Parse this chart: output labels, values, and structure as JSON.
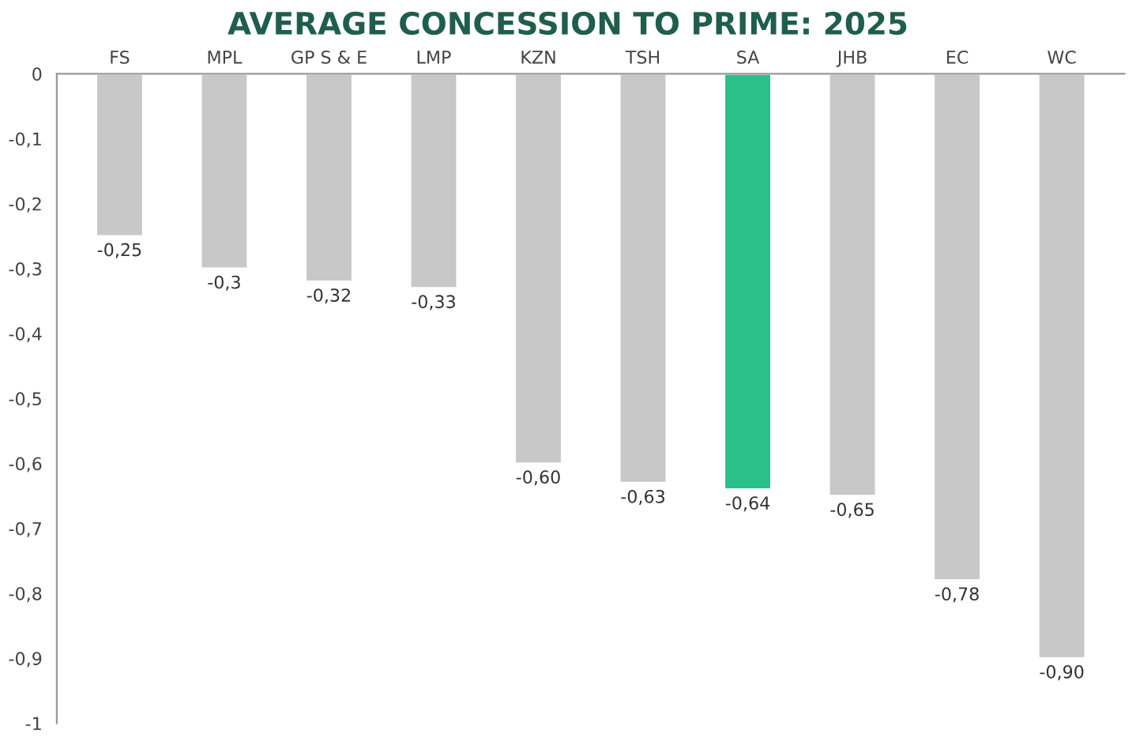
{
  "chart_data": {
    "type": "bar",
    "title": "AVERAGE CONCESSION TO PRIME: 2025",
    "categories": [
      "FS",
      "MPL",
      "GP S & E",
      "LMP",
      "KZN",
      "TSH",
      "SA",
      "JHB",
      "EC",
      "WC"
    ],
    "values": [
      -0.25,
      -0.3,
      -0.32,
      -0.33,
      -0.6,
      -0.63,
      -0.64,
      -0.65,
      -0.78,
      -0.9
    ],
    "colors": [
      "#c8c8c8",
      "#c8c8c8",
      "#c8c8c8",
      "#c8c8c8",
      "#c8c8c8",
      "#c8c8c8",
      "#2bbf8a",
      "#c8c8c8",
      "#c8c8c8",
      "#c8c8c8"
    ],
    "value_labels": [
      "-0,25",
      "-0,3",
      "-0,32",
      "-0,33",
      "-0,60",
      "-0,63",
      "-0,64",
      "-0,65",
      "-0,78",
      "-0,90"
    ],
    "ylim": [
      -1,
      0
    ],
    "yticks": [
      {
        "value": 0,
        "label": "0"
      },
      {
        "value": -0.1,
        "label": "-0,1"
      },
      {
        "value": -0.2,
        "label": "-0,2"
      },
      {
        "value": -0.3,
        "label": "-0,3"
      },
      {
        "value": -0.4,
        "label": "-0,4"
      },
      {
        "value": -0.5,
        "label": "-0,5"
      },
      {
        "value": -0.6,
        "label": "-0,6"
      },
      {
        "value": -0.7,
        "label": "-0,7"
      },
      {
        "value": -0.8,
        "label": "-0,8"
      },
      {
        "value": -0.9,
        "label": "-0,9"
      },
      {
        "value": -1,
        "label": "-1"
      }
    ],
    "grid": false,
    "legend": false
  }
}
